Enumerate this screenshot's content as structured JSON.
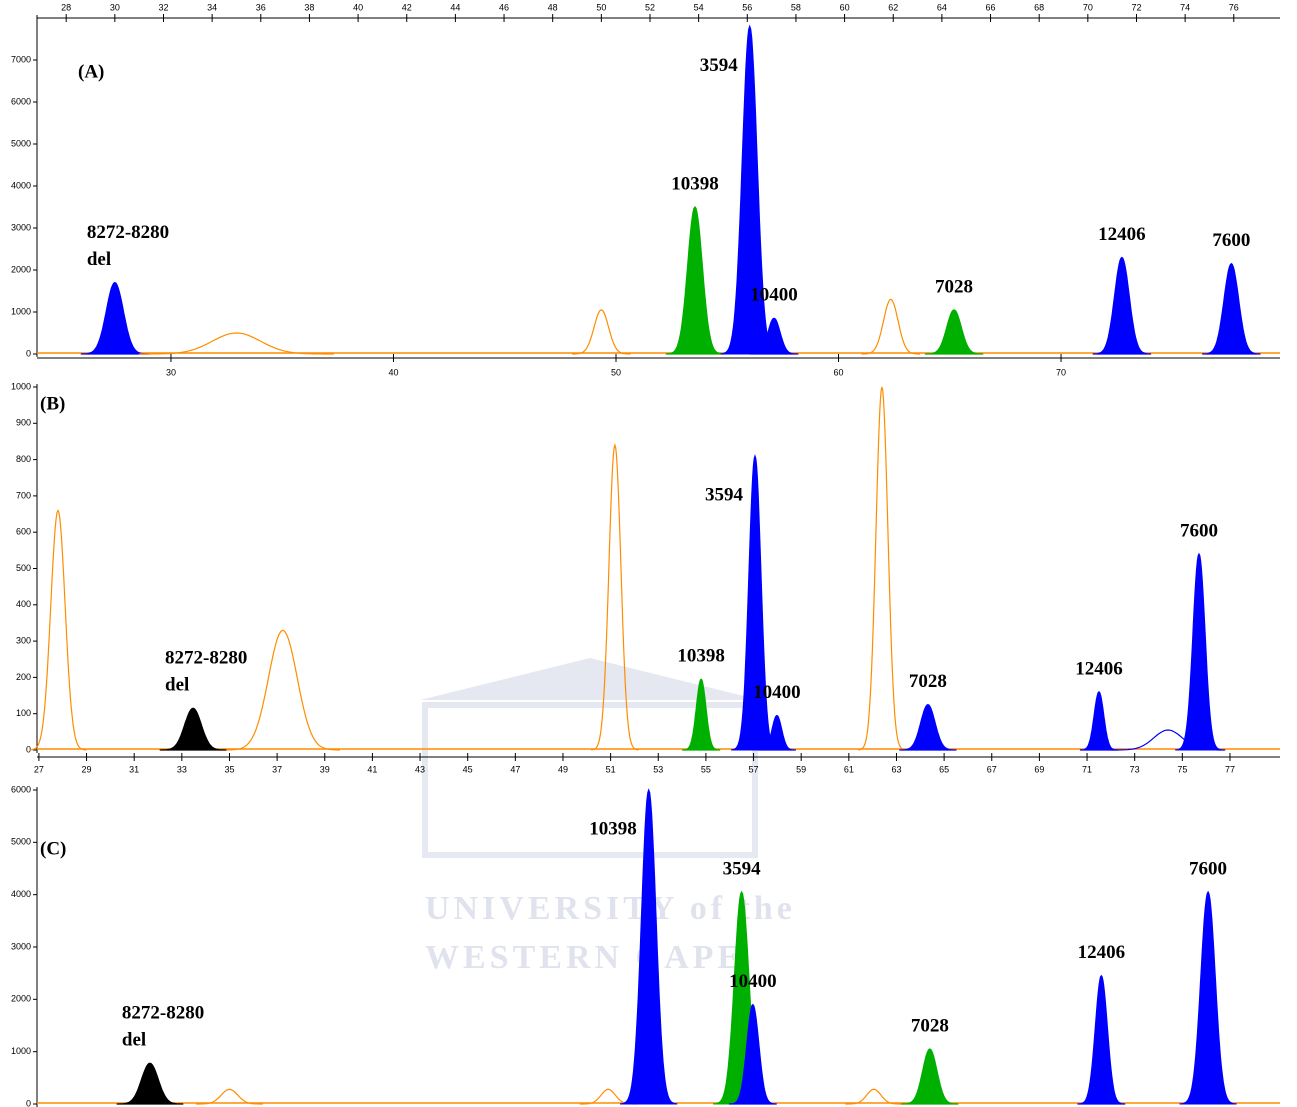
{
  "chart_data": [
    {
      "type": "area",
      "panel_label": "(A)",
      "xlim": [
        26.8,
        77.9
      ],
      "xticks": [
        28,
        30,
        32,
        34,
        36,
        38,
        40,
        42,
        44,
        46,
        48,
        50,
        52,
        54,
        56,
        58,
        60,
        62,
        64,
        66,
        68,
        70,
        72,
        74,
        76
      ],
      "x_axis": "top",
      "x2lim": [
        23.98,
        79.84
      ],
      "x2ticks": [
        30,
        40,
        50,
        60,
        70
      ],
      "ylim": [
        0,
        8000
      ],
      "yticks": [
        0,
        1000,
        2000,
        3000,
        4000,
        5000,
        6000,
        7000
      ],
      "peaks": [
        {
          "x": 30,
          "height": 1700,
          "width": 0.35,
          "color": "#0000ff",
          "filled": true,
          "label": [
            "8272-8280",
            "del"
          ]
        },
        {
          "x": 35,
          "height": 500,
          "width": 1.0,
          "color": "#ff8c00",
          "filled": false
        },
        {
          "x": 50,
          "height": 1050,
          "width": 0.3,
          "color": "#ff8c00",
          "filled": false
        },
        {
          "x": 53.85,
          "height": 3500,
          "width": 0.3,
          "color": "#00b000",
          "filled": true,
          "label": "10398"
        },
        {
          "x": 56.1,
          "height": 7800,
          "width": 0.3,
          "color": "#0000ff",
          "filled": true,
          "label": "3594"
        },
        {
          "x": 57.1,
          "height": 850,
          "width": 0.25,
          "color": "#0000ff",
          "filled": true,
          "label": "10400"
        },
        {
          "x": 61.9,
          "height": 1300,
          "width": 0.3,
          "color": "#ff8c00",
          "filled": false
        },
        {
          "x": 64.5,
          "height": 1050,
          "width": 0.3,
          "color": "#00b000",
          "filled": true,
          "label": "7028"
        },
        {
          "x": 71.4,
          "height": 2300,
          "width": 0.3,
          "color": "#0000ff",
          "filled": true,
          "label": "12406"
        },
        {
          "x": 75.9,
          "height": 2150,
          "width": 0.3,
          "color": "#0000ff",
          "filled": true,
          "label": "7600"
        }
      ]
    },
    {
      "type": "area",
      "panel_label": "(B)",
      "xlim": [
        26.92,
        79.1
      ],
      "xticks": [
        27,
        29,
        31,
        33,
        35,
        37,
        39,
        41,
        43,
        45,
        47,
        49,
        51,
        53,
        55,
        57,
        59,
        61,
        63,
        65,
        67,
        69,
        71,
        73,
        75,
        77
      ],
      "x_axis": "bottom",
      "ylim": [
        0,
        1000
      ],
      "yticks": [
        0,
        100,
        200,
        300,
        400,
        500,
        600,
        700,
        800,
        900,
        1000
      ],
      "peaks": [
        {
          "x": 27.8,
          "height": 660,
          "width": 0.3,
          "color": "#ff8c00",
          "filled": false
        },
        {
          "x": 37.24,
          "height": 330,
          "width": 0.6,
          "color": "#ff8c00",
          "filled": false
        },
        {
          "x": 33.47,
          "height": 115,
          "width": 0.35,
          "color": "#000000",
          "filled": true,
          "label": [
            "8272-8280",
            "del"
          ]
        },
        {
          "x": 51.18,
          "height": 840,
          "width": 0.25,
          "color": "#ff8c00",
          "filled": false
        },
        {
          "x": 54.8,
          "height": 195,
          "width": 0.2,
          "color": "#00b000",
          "filled": true,
          "label": "10398"
        },
        {
          "x": 57.06,
          "height": 810,
          "width": 0.25,
          "color": "#0000ff",
          "filled": true,
          "label": "3594"
        },
        {
          "x": 57.98,
          "height": 95,
          "width": 0.2,
          "color": "#0000ff",
          "filled": true,
          "label": "10400"
        },
        {
          "x": 62.39,
          "height": 1000,
          "width": 0.25,
          "color": "#ff8c00",
          "filled": false
        },
        {
          "x": 64.32,
          "height": 125,
          "width": 0.3,
          "color": "#0000ff",
          "filled": true,
          "label": "7028"
        },
        {
          "x": 71.5,
          "height": 160,
          "width": 0.2,
          "color": "#0000ff",
          "filled": true,
          "label": "12406"
        },
        {
          "x": 74.4,
          "height": 55,
          "width": 0.6,
          "color": "#0000ff",
          "filled": false
        },
        {
          "x": 75.7,
          "height": 540,
          "width": 0.25,
          "color": "#0000ff",
          "filled": true,
          "label": "7600"
        }
      ]
    },
    {
      "type": "area",
      "panel_label": "(C)",
      "xlim": [
        26.92,
        79.1
      ],
      "ylim": [
        0,
        6000
      ],
      "yticks": [
        0,
        1000,
        2000,
        3000,
        4000,
        5000,
        6000
      ],
      "peaks": [
        {
          "x": 31.66,
          "height": 780,
          "width": 0.35,
          "color": "#000000",
          "filled": true,
          "label": [
            "8272-8280",
            "del"
          ]
        },
        {
          "x": 35.0,
          "height": 280,
          "width": 0.35,
          "color": "#ff8c00",
          "filled": false
        },
        {
          "x": 50.9,
          "height": 280,
          "width": 0.3,
          "color": "#ff8c00",
          "filled": false
        },
        {
          "x": 52.6,
          "height": 6000,
          "width": 0.3,
          "color": "#0000ff",
          "filled": true,
          "label": "10398"
        },
        {
          "x": 56.5,
          "height": 4050,
          "width": 0.3,
          "color": "#00b000",
          "filled": true,
          "label": "3594"
        },
        {
          "x": 56.97,
          "height": 1900,
          "width": 0.25,
          "color": "#0000ff",
          "filled": true,
          "label": "10400"
        },
        {
          "x": 62.05,
          "height": 280,
          "width": 0.3,
          "color": "#ff8c00",
          "filled": false
        },
        {
          "x": 64.4,
          "height": 1050,
          "width": 0.3,
          "color": "#00b000",
          "filled": true,
          "label": "7028"
        },
        {
          "x": 71.6,
          "height": 2450,
          "width": 0.25,
          "color": "#0000ff",
          "filled": true,
          "label": "12406"
        },
        {
          "x": 76.08,
          "height": 4050,
          "width": 0.3,
          "color": "#0000ff",
          "filled": true,
          "label": "7600"
        }
      ]
    }
  ],
  "watermark": [
    "UNIVERSITY of the",
    "WESTERN CAPE"
  ]
}
